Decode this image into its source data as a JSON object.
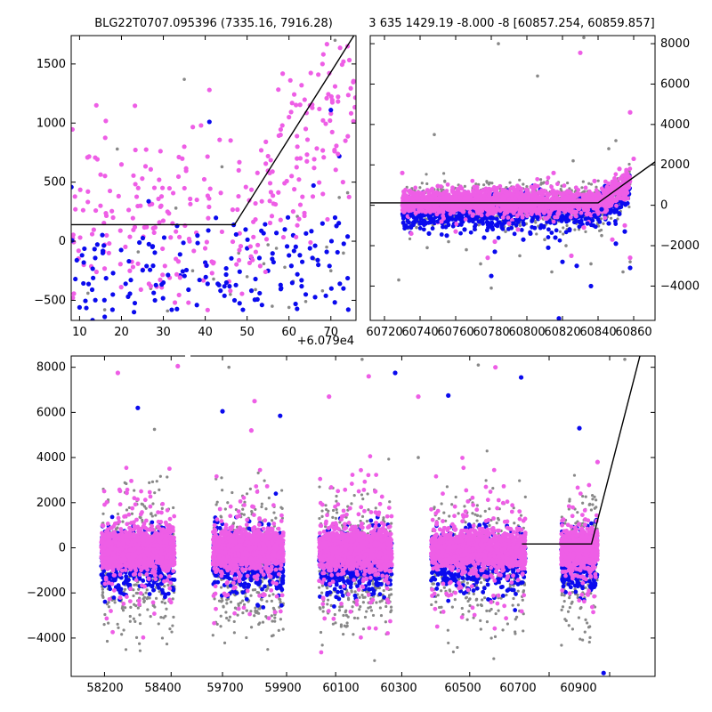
{
  "colors": {
    "magenta": "#ee5ee6",
    "blue": "#0a0aee",
    "gray": "#888888",
    "model": "#000000"
  },
  "chart_data": [
    {
      "id": "top-left",
      "type": "scatter",
      "title": "BLG22T0707.095396 (7335.16, 7916.28)",
      "x_offset_label": "+6.079e4",
      "xlim": [
        8,
        76
      ],
      "ylim": [
        -670,
        1740
      ],
      "xticks": [
        10,
        20,
        30,
        40,
        50,
        60,
        70
      ],
      "yticks": [
        -500,
        0,
        500,
        1000,
        1500
      ],
      "model": [
        [
          8,
          140
        ],
        [
          47,
          140
        ],
        [
          75.5,
          1740
        ]
      ],
      "series": [
        {
          "color": "magenta",
          "points": [
            [
              12,
              420
            ],
            [
              14,
              1150
            ],
            [
              15,
              300
            ],
            [
              17,
              -100
            ],
            [
              18,
              200
            ],
            [
              20,
              650
            ],
            [
              22,
              -250
            ],
            [
              24,
              450
            ],
            [
              27,
              -380
            ],
            [
              29,
              520
            ],
            [
              31,
              250
            ],
            [
              33,
              -150
            ],
            [
              35,
              800
            ],
            [
              38,
              350
            ],
            [
              39,
              980
            ],
            [
              41,
              1280
            ],
            [
              44,
              80
            ],
            [
              46,
              -420
            ],
            [
              52,
              320
            ],
            [
              55,
              720
            ],
            [
              58,
              900
            ],
            [
              60,
              1050
            ],
            [
              62,
              800
            ],
            [
              63,
              1320
            ],
            [
              64,
              950
            ],
            [
              65,
              1150
            ],
            [
              66,
              620
            ],
            [
              67,
              1410
            ],
            [
              68,
              1500
            ],
            [
              69,
              1210
            ],
            [
              70,
              1080
            ],
            [
              71,
              1310
            ],
            [
              72,
              720
            ],
            [
              73,
              1520
            ],
            [
              74,
              1650
            ],
            [
              58,
              180
            ],
            [
              48,
              600
            ],
            [
              36,
              -520
            ],
            [
              26,
              120
            ],
            [
              16,
              -30
            ],
            [
              9,
              270
            ],
            [
              11,
              -200
            ],
            [
              13,
              60
            ]
          ]
        },
        {
          "color": "blue",
          "points": [
            [
              9,
              -320
            ],
            [
              10,
              -560
            ],
            [
              11,
              -180
            ],
            [
              13,
              -410
            ],
            [
              16,
              -640
            ],
            [
              18,
              -270
            ],
            [
              21,
              -360
            ],
            [
              23,
              -600
            ],
            [
              26,
              -210
            ],
            [
              28,
              -500
            ],
            [
              30,
              -350
            ],
            [
              32,
              -580
            ],
            [
              34,
              -290
            ],
            [
              36,
              -410
            ],
            [
              38,
              -540
            ],
            [
              40,
              -180
            ],
            [
              41,
              1010
            ],
            [
              43,
              -360
            ],
            [
              45,
              -230
            ],
            [
              47,
              -500
            ],
            [
              49,
              -580
            ],
            [
              51,
              -140
            ],
            [
              52,
              -320
            ],
            [
              53,
              -440
            ],
            [
              55,
              -250
            ],
            [
              56,
              -150
            ],
            [
              58,
              -370
            ],
            [
              59,
              100
            ],
            [
              60,
              -120
            ],
            [
              61,
              50
            ],
            [
              62,
              -280
            ],
            [
              64,
              -450
            ],
            [
              65,
              -60
            ],
            [
              67,
              -200
            ],
            [
              68,
              150
            ],
            [
              69,
              -90
            ],
            [
              70,
              1110
            ],
            [
              71,
              200
            ],
            [
              72,
              720
            ],
            [
              73,
              -400
            ],
            [
              74,
              40
            ],
            [
              57,
              70
            ],
            [
              63,
              -330
            ],
            [
              50,
              -60
            ]
          ]
        },
        {
          "color": "gray",
          "points": [
            [
              12,
              -440
            ],
            [
              16,
              -580
            ],
            [
              19,
              780
            ],
            [
              24,
              -90
            ],
            [
              27,
              -400
            ],
            [
              31,
              -590
            ],
            [
              33,
              280
            ],
            [
              35,
              1370
            ],
            [
              37,
              -250
            ],
            [
              42,
              -320
            ],
            [
              44,
              630
            ],
            [
              46,
              -450
            ],
            [
              48,
              -100
            ],
            [
              50,
              -300
            ],
            [
              52,
              -410
            ],
            [
              54,
              -190
            ],
            [
              56,
              -550
            ],
            [
              57,
              -60
            ],
            [
              59,
              -220
            ],
            [
              61,
              -340
            ],
            [
              62,
              210
            ],
            [
              64,
              -510
            ],
            [
              66,
              -150
            ],
            [
              68,
              -420
            ],
            [
              69,
              -50
            ],
            [
              70,
              -250
            ],
            [
              71,
              1700
            ],
            [
              72,
              370
            ],
            [
              73,
              -100
            ],
            [
              74,
              410
            ],
            [
              60,
              -560
            ],
            [
              55,
              -30
            ]
          ]
        }
      ]
    },
    {
      "id": "top-right",
      "type": "scatter",
      "title": "3 635 1429.19 -8.000 -8 [60857.254, 60859.857]",
      "xlim": [
        60712,
        60872
      ],
      "ylim": [
        -5700,
        8400
      ],
      "xticks": [
        60720,
        60740,
        60760,
        60780,
        60800,
        60820,
        60840,
        60860
      ],
      "yticks": [
        -4000,
        -2000,
        0,
        2000,
        4000,
        6000,
        8000
      ],
      "model": [
        [
          60712,
          120
        ],
        [
          60840,
          120
        ],
        [
          60872,
          2150
        ]
      ],
      "series": [
        {
          "color": "magenta",
          "points": [
            [
              60730,
              1600
            ],
            [
              60735,
              -1400
            ],
            [
              60750,
              950
            ],
            [
              60752,
              -800
            ],
            [
              60760,
              -1300
            ],
            [
              60765,
              650
            ],
            [
              60772,
              900
            ],
            [
              60778,
              -2600
            ],
            [
              60782,
              -1800
            ],
            [
              60790,
              -900
            ],
            [
              60795,
              -1200
            ],
            [
              60810,
              700
            ],
            [
              60815,
              1600
            ],
            [
              60818,
              -400
            ],
            [
              60825,
              -2500
            ],
            [
              60830,
              7550
            ],
            [
              60832,
              -1100
            ],
            [
              60838,
              1200
            ],
            [
              60845,
              900
            ],
            [
              60848,
              -1700
            ],
            [
              60852,
              1800
            ],
            [
              60855,
              -1000
            ],
            [
              60858,
              4600
            ],
            [
              60860,
              2300
            ],
            [
              60858,
              -2600
            ]
          ]
        },
        {
          "color": "blue",
          "points": [
            [
              60735,
              -500
            ],
            [
              60740,
              -900
            ],
            [
              60745,
              -1400
            ],
            [
              60750,
              -800
            ],
            [
              60755,
              -1500
            ],
            [
              60760,
              -700
            ],
            [
              60765,
              -1200
            ],
            [
              60772,
              -600
            ],
            [
              60776,
              -1600
            ],
            [
              60780,
              -3500
            ],
            [
              60782,
              -2300
            ],
            [
              60786,
              -1100
            ],
            [
              60792,
              -900
            ],
            [
              60798,
              -1700
            ],
            [
              60802,
              -1400
            ],
            [
              60806,
              -600
            ],
            [
              60812,
              -2100
            ],
            [
              60816,
              -1600
            ],
            [
              60820,
              -2800
            ],
            [
              60824,
              -1200
            ],
            [
              60828,
              -3000
            ],
            [
              60834,
              -900
            ],
            [
              60838,
              -500
            ],
            [
              60842,
              -200
            ],
            [
              60846,
              -900
            ],
            [
              60850,
              -1900
            ],
            [
              60855,
              -1300
            ],
            [
              60858,
              -3100
            ],
            [
              60836,
              -4000
            ],
            [
              60818,
              -5600
            ]
          ]
        },
        {
          "color": "gray",
          "points": [
            [
              60728,
              -3700
            ],
            [
              60738,
              -1100
            ],
            [
              60744,
              -2100
            ],
            [
              60748,
              3500
            ],
            [
              60756,
              -1800
            ],
            [
              60766,
              -2200
            ],
            [
              60774,
              -2900
            ],
            [
              60780,
              -4100
            ],
            [
              60784,
              8000
            ],
            [
              60788,
              -1300
            ],
            [
              60796,
              -2500
            ],
            [
              60806,
              6400
            ],
            [
              60810,
              -1700
            ],
            [
              60814,
              -3300
            ],
            [
              60822,
              -2000
            ],
            [
              60826,
              2200
            ],
            [
              60832,
              8300
            ],
            [
              60836,
              -2900
            ],
            [
              60842,
              -1500
            ],
            [
              60846,
              2800
            ],
            [
              60850,
              3200
            ],
            [
              60854,
              -3300
            ],
            [
              60858,
              -2800
            ]
          ]
        }
      ]
    },
    {
      "id": "bottom",
      "type": "scatter",
      "xlim": [
        58080,
        61050
      ],
      "ylim": [
        -5700,
        8500
      ],
      "xticks_labels": [
        "58200",
        "58400",
        "59700",
        "59900",
        "60100",
        "60300",
        "60500",
        "60700",
        "60900"
      ],
      "yticks": [
        -4000,
        -2000,
        0,
        2000,
        4000,
        6000,
        8000
      ],
      "break_label": "",
      "model_segments": [
        [
          [
            60610,
            170
          ],
          [
            60840,
            170
          ],
          [
            61000,
            8500
          ]
        ]
      ],
      "clusters": [
        {
          "segment": 0,
          "center": 58300,
          "half_width": 110
        },
        {
          "segment": 1,
          "center": 59780,
          "half_width": 110
        },
        {
          "segment": 2,
          "center": 60160,
          "half_width": 110
        },
        {
          "segment": 3,
          "center": 60520,
          "half_width": 110
        },
        {
          "segment": 4,
          "center": 60800,
          "half_width": 60
        }
      ],
      "outliers": {
        "magenta": [
          [
            58240,
            7750
          ],
          [
            58420,
            8050
          ],
          [
            59800,
            6500
          ],
          [
            59790,
            5200
          ],
          [
            60200,
            7600
          ],
          [
            60080,
            6700
          ],
          [
            60350,
            6700
          ],
          [
            60220,
            2500
          ],
          [
            60860,
            3800
          ],
          [
            60560,
            8000
          ]
        ],
        "blue": [
          [
            58300,
            6200
          ],
          [
            59880,
            5850
          ],
          [
            59700,
            6050
          ],
          [
            60280,
            7750
          ],
          [
            60450,
            6750
          ],
          [
            60620,
            7550
          ],
          [
            60800,
            5300
          ],
          [
            60880,
            -5550
          ]
        ],
        "gray": [
          [
            58350,
            5250
          ],
          [
            59720,
            8000
          ],
          [
            60180,
            8350
          ],
          [
            60520,
            8100
          ],
          [
            60950,
            8350
          ],
          [
            60350,
            4000
          ]
        ]
      },
      "x_segments": [
        {
          "label_ticks": [
            58200,
            58400
          ],
          "range": [
            58100,
            58450
          ]
        },
        {
          "label_ticks": [
            59700,
            59900
          ],
          "range": [
            59600,
            59950
          ]
        },
        {
          "label_ticks": [
            60100,
            60300
          ],
          "range": [
            60000,
            60350
          ]
        },
        {
          "label_ticks": [
            60500
          ],
          "range": [
            60380,
            60650
          ]
        },
        {
          "label_ticks": [
            60700,
            60900
          ],
          "range": [
            60650,
            61050
          ]
        }
      ]
    }
  ]
}
